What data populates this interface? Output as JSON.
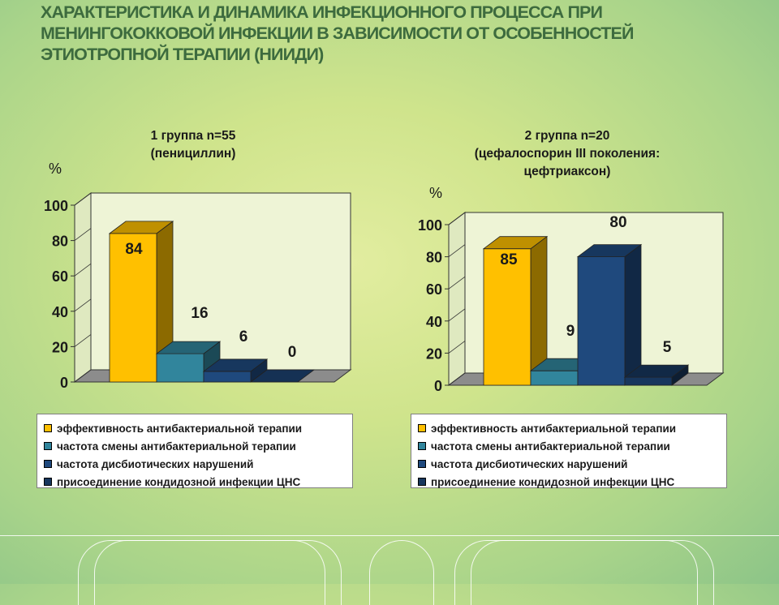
{
  "title": "Характеристика и динамика инфекционного процесса при менингококковой инфекции в зависимости от особенностей этиотропной терапии (НИИДИ)",
  "colors": {
    "yellow": "#ffc000",
    "teal": "#31859c",
    "navy": "#1f497d",
    "darknavy": "#17365d",
    "floor": "#8c8c8c"
  },
  "chart_data": [
    {
      "type": "bar",
      "title_lines": [
        "1 группа n=55",
        "(пенициллин)"
      ],
      "ylabel": "%",
      "ylim": [
        0,
        100
      ],
      "yticks": [
        "0",
        "20",
        "40",
        "60",
        "80",
        "100"
      ],
      "categories": [
        "эффективность антибактериальной терапии",
        "частота смены антибактериальной терапии",
        "частота дисбиотических нарушений",
        "присоединение кондидозной инфекции ЦНС"
      ],
      "values": [
        84,
        16,
        6,
        0
      ],
      "value_labels": [
        "84",
        "16",
        "6",
        "0"
      ],
      "legend": [
        "эффективность антибактериальной терапии",
        "частота смены антибактериальной терапии",
        "частота дисбиотических нарушений",
        "присоединение кондидозной инфекции ЦНС"
      ]
    },
    {
      "type": "bar",
      "title_lines": [
        "2 группа n=20",
        "(цефалоспорин III поколения:",
        "цефтриаксон)"
      ],
      "ylabel": "%",
      "ylim": [
        0,
        100
      ],
      "yticks": [
        "0",
        "20",
        "40",
        "60",
        "80",
        "100"
      ],
      "categories": [
        "эффективность антибактериальной терапии",
        "частота смены антибактериальной терапии",
        "частота дисбиотических нарушений",
        "присоединение кондидозной инфекции ЦНС"
      ],
      "values": [
        85,
        9,
        80,
        5
      ],
      "value_labels": [
        "85",
        "9",
        "80",
        "5"
      ],
      "legend": [
        "эффективность антибактериальной терапии",
        "частота смены антибактериальной терапии",
        "частота дисбиотических нарушений",
        "присоединение кондидозной инфекции ЦНС"
      ]
    }
  ]
}
